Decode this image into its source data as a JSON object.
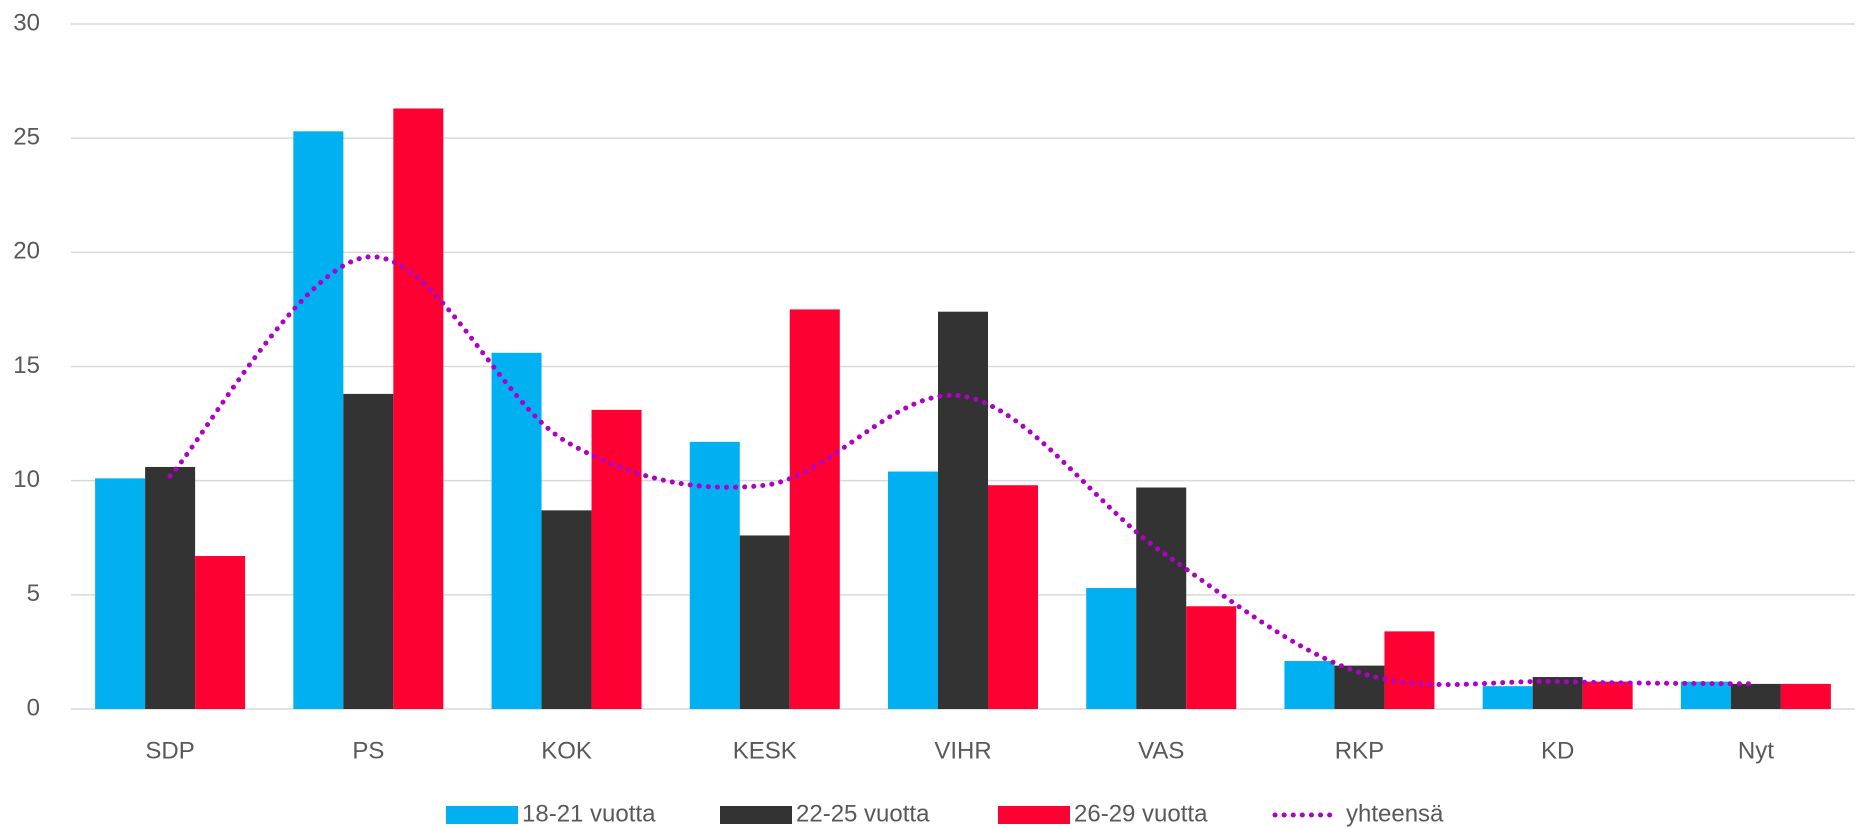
{
  "chart_data": {
    "type": "bar",
    "categories": [
      "SDP",
      "PS",
      "KOK",
      "KESK",
      "VIHR",
      "VAS",
      "RKP",
      "KD",
      "Nyt"
    ],
    "series": [
      {
        "name": "18-21 vuotta",
        "color": "#00b0f0",
        "values": [
          10.1,
          25.3,
          15.6,
          11.7,
          10.4,
          5.3,
          2.1,
          1.0,
          1.2
        ]
      },
      {
        "name": "22-25 vuotta",
        "color": "#333333",
        "values": [
          10.6,
          13.8,
          8.7,
          7.6,
          17.4,
          9.7,
          1.9,
          1.4,
          1.1
        ]
      },
      {
        "name": "26-29 vuotta",
        "color": "#ff0033",
        "values": [
          6.7,
          26.3,
          13.1,
          17.5,
          9.8,
          4.5,
          3.4,
          1.2,
          1.1
        ]
      },
      {
        "name": "yhteensä",
        "type": "line",
        "color": "#b000c8",
        "values": [
          10.2,
          19.8,
          11.7,
          9.8,
          13.7,
          6.9,
          1.6,
          1.2,
          1.1
        ]
      }
    ],
    "ylim": [
      0,
      30
    ],
    "yticks": [
      0,
      5,
      10,
      15,
      20,
      25,
      30
    ],
    "grid": true,
    "legend": "bottom"
  }
}
